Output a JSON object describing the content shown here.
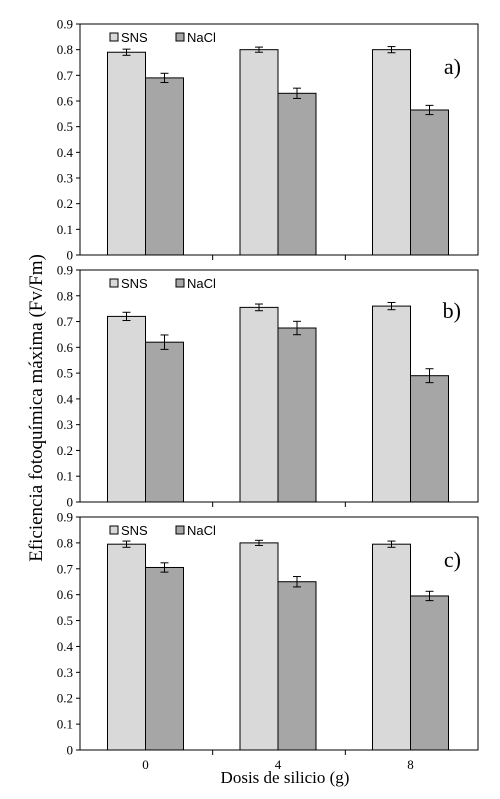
{
  "chart_data": {
    "type": "bar",
    "ylabel": "Eficiencia fotoquímica máxima (Fv/Fm)",
    "xlabel": "Dosis de silicio  (g)",
    "categories": [
      "0",
      "4",
      "8"
    ],
    "ylim": [
      0,
      0.9
    ],
    "yticks": [
      "0",
      "0.1",
      "0.2",
      "0.3",
      "0.4",
      "0.5",
      "0.6",
      "0.7",
      "0.8",
      "0.9"
    ],
    "legend_position": "top-left",
    "colors": {
      "SNS": "#d9d9d9",
      "NaCl": "#a6a6a6"
    },
    "panels": [
      {
        "letter": "a)",
        "series": [
          {
            "name": "SNS",
            "values": [
              0.79,
              0.8,
              0.8
            ],
            "errors": [
              0.012,
              0.01,
              0.012
            ]
          },
          {
            "name": "NaCl",
            "values": [
              0.69,
              0.63,
              0.565
            ],
            "errors": [
              0.018,
              0.02,
              0.018
            ]
          }
        ]
      },
      {
        "letter": "b)",
        "series": [
          {
            "name": "SNS",
            "values": [
              0.72,
              0.755,
              0.76
            ],
            "errors": [
              0.016,
              0.013,
              0.014
            ]
          },
          {
            "name": "NaCl",
            "values": [
              0.62,
              0.675,
              0.49
            ],
            "errors": [
              0.028,
              0.026,
              0.027
            ]
          }
        ]
      },
      {
        "letter": "c)",
        "series": [
          {
            "name": "SNS",
            "values": [
              0.795,
              0.8,
              0.795
            ],
            "errors": [
              0.012,
              0.01,
              0.012
            ]
          },
          {
            "name": "NaCl",
            "values": [
              0.705,
              0.65,
              0.595
            ],
            "errors": [
              0.018,
              0.02,
              0.018
            ]
          }
        ]
      }
    ]
  }
}
